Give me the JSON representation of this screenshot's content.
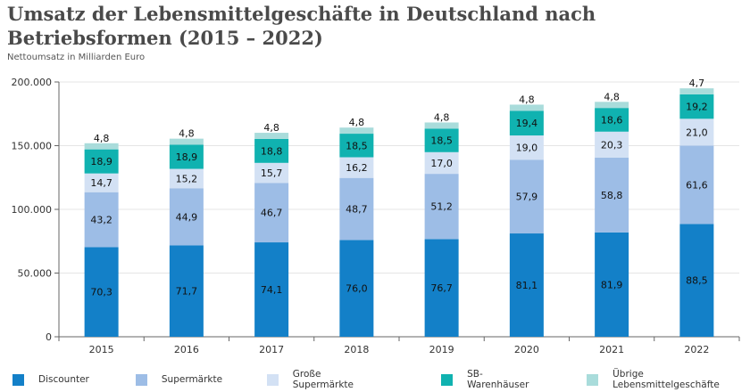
{
  "title": "Umsatz der Lebensmittelgeschäfte in Deutschland nach Betriebsformen (2015 – 2022)",
  "subtitle": "Nettoumsatz in Milliarden Euro",
  "chart_data": {
    "type": "bar",
    "stacked": true,
    "categories": [
      "2015",
      "2016",
      "2017",
      "2018",
      "2019",
      "2020",
      "2021",
      "2022"
    ],
    "series": [
      {
        "name": "Discounter",
        "color": "#1380c8",
        "values": [
          70.3,
          71.7,
          74.1,
          76.0,
          76.7,
          81.1,
          81.9,
          88.5
        ],
        "labels": [
          "70,3",
          "71,7",
          "74,1",
          "76,0",
          "76,7",
          "81,1",
          "81,9",
          "88,5"
        ]
      },
      {
        "name": "Supermärkte",
        "color": "#9dbde6",
        "values": [
          43.2,
          44.9,
          46.7,
          48.7,
          51.2,
          57.9,
          58.8,
          61.6
        ],
        "labels": [
          "43,2",
          "44,9",
          "46,7",
          "48,7",
          "51,2",
          "57,9",
          "58,8",
          "61,6"
        ]
      },
      {
        "name": "Große Supermärkte",
        "color": "#d3e1f4",
        "values": [
          14.7,
          15.2,
          15.7,
          16.2,
          17.0,
          19.0,
          20.3,
          21.0
        ],
        "labels": [
          "14,7",
          "15,2",
          "15,7",
          "16,2",
          "17,0",
          "19,0",
          "20,3",
          "21,0"
        ]
      },
      {
        "name": "SB-Warenhäuser",
        "color": "#10b2b0",
        "values": [
          18.9,
          18.9,
          18.8,
          18.5,
          18.5,
          19.4,
          18.6,
          19.2
        ],
        "labels": [
          "18,9",
          "18,9",
          "18,8",
          "18,5",
          "18,5",
          "19,4",
          "18,6",
          "19,2"
        ]
      },
      {
        "name": "Übrige Lebensmittelgeschäfte",
        "color": "#a9dcdb",
        "values": [
          4.8,
          4.8,
          4.8,
          4.8,
          4.8,
          4.8,
          4.8,
          4.7
        ],
        "labels": [
          "4,8",
          "4,8",
          "4,8",
          "4,8",
          "4,8",
          "4,8",
          "4,8",
          "4,7"
        ]
      }
    ],
    "yticks": [
      "0",
      "50.000",
      "100.000",
      "150.000",
      "200.000"
    ],
    "ylim": [
      0,
      200
    ],
    "grid": true,
    "legend": "bottom"
  }
}
